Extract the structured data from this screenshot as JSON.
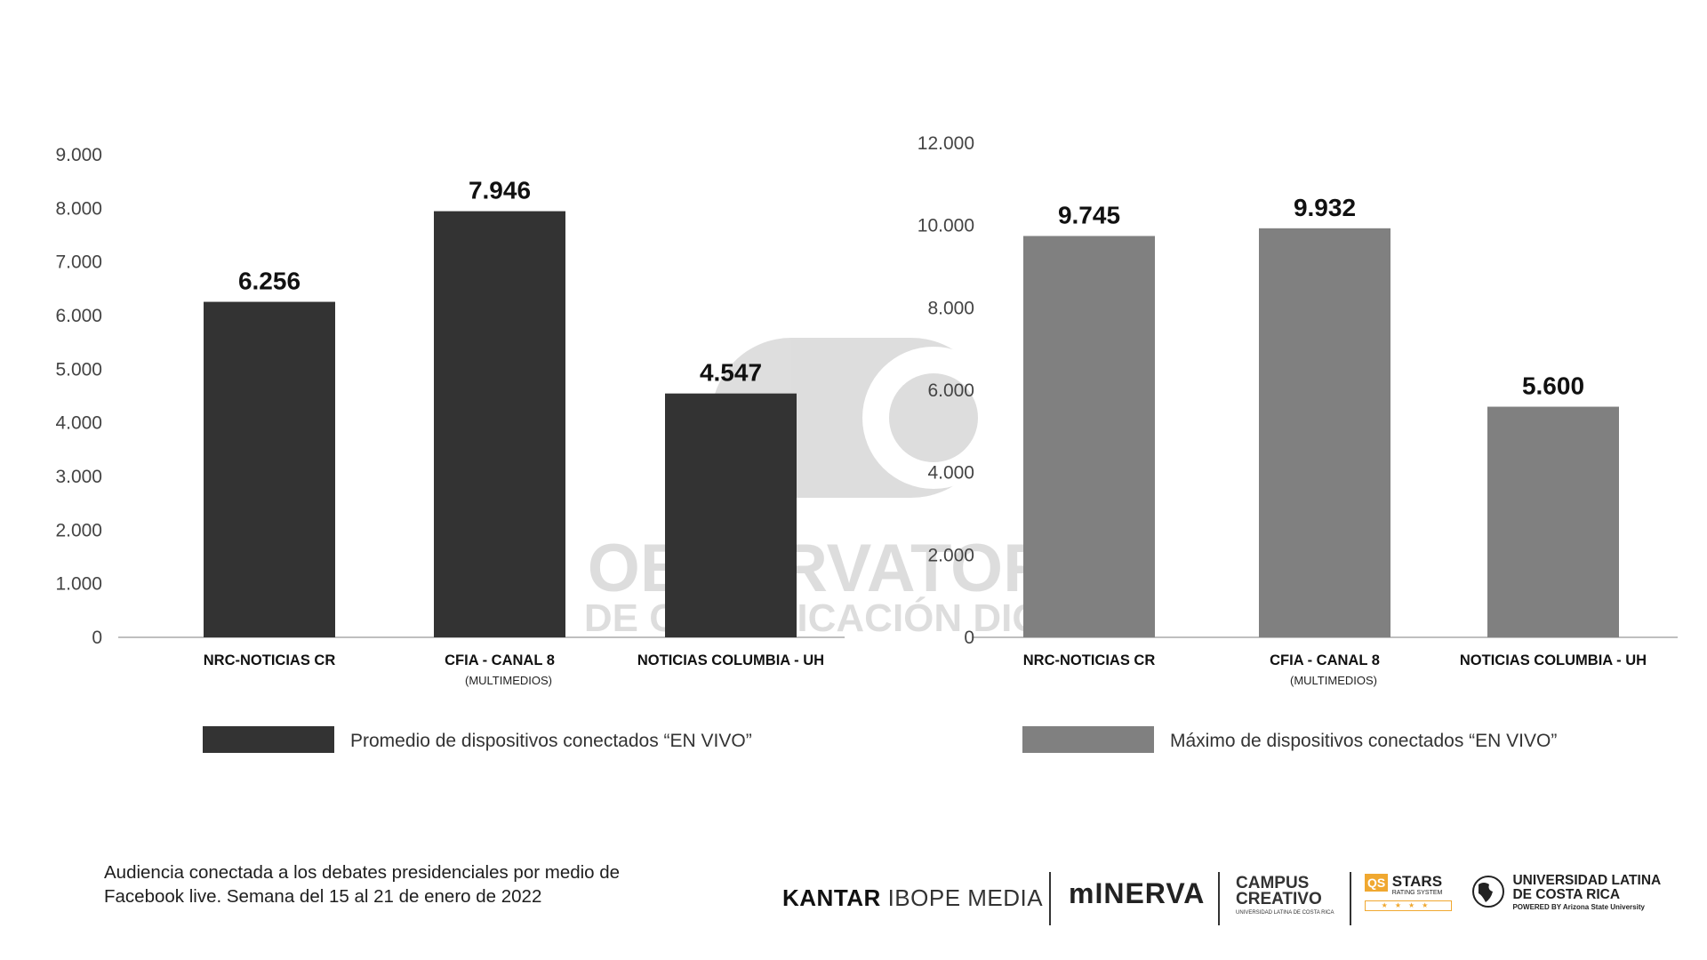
{
  "watermark": {
    "line1": "OBSERVATORIO",
    "line2": "DE COMUNICACIÓN DIGITAL"
  },
  "colors": {
    "left_bars": "#333333",
    "right_bars": "#808080",
    "axis": "#aaaaaa",
    "tick_text": "#444444"
  },
  "chart_data": [
    {
      "type": "bar",
      "categories": [
        "NRC-NOTICIAS CR",
        "CFIA - CANAL 8",
        "NOTICIAS COLUMBIA - UH"
      ],
      "category_sublabels": [
        "",
        "(MULTIMEDIOS)",
        ""
      ],
      "series": [
        {
          "name": "Promedio de dispositivos conectados “EN VIVO”",
          "values": [
            6256,
            7946,
            4547
          ],
          "color": "#333333"
        }
      ],
      "data_labels": [
        "6.256",
        "7.946",
        "4.547"
      ],
      "yticks": [
        "0",
        "1.000",
        "2.000",
        "3.000",
        "4.000",
        "5.000",
        "6.000",
        "7.000",
        "8.000",
        "9.000"
      ],
      "ylim": [
        0,
        9000
      ],
      "grid": false,
      "legend": "bottom"
    },
    {
      "type": "bar",
      "categories": [
        "NRC-NOTICIAS CR",
        "CFIA - CANAL 8",
        "NOTICIAS COLUMBIA - UH"
      ],
      "category_sublabels": [
        "",
        "(MULTIMEDIOS)",
        ""
      ],
      "series": [
        {
          "name": "Máximo de dispositivos conectados “EN VIVO”",
          "values": [
            9745,
            9932,
            5600
          ],
          "color": "#808080"
        }
      ],
      "data_labels": [
        "9.745",
        "9.932",
        "5.600"
      ],
      "yticks": [
        "0",
        "2.000",
        "4.000",
        "6.000",
        "8.000",
        "10.000",
        "12.000"
      ],
      "ylim": [
        0,
        12000
      ],
      "grid": false,
      "legend": "bottom"
    }
  ],
  "footer": {
    "note_line1": "Audiencia conectada a los debates presidenciales por medio de",
    "note_line2": "Facebook live. Semana del 15 al 21 de enero de 2022"
  },
  "logos": {
    "kantar_bold": "KANTAR",
    "kantar_rest": "IBOPE MEDIA",
    "minerva": "mINERVA",
    "campus_line1": "CAMPUS",
    "campus_line2": "CREATIVO",
    "campus_sub": "UNIVERSIDAD LATINA DE COSTA RICA",
    "qs_badge": "QS",
    "qs_stars": "STARS",
    "qs_sub": "RATING SYSTEM",
    "qs_rating": "★★★★",
    "ulatina_line1": "UNIVERSIDAD LATINA",
    "ulatina_line2": "DE COSTA RICA",
    "ulatina_sub": "POWERED BY Arizona State University"
  }
}
